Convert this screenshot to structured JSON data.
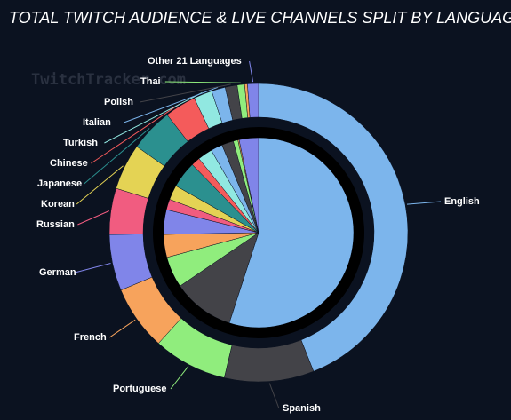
{
  "chart_data": {
    "type": "pie",
    "title": "TOTAL TWITCH AUDIENCE & LIVE CHANNELS SPLIT BY LANGUAGE",
    "watermark": "TwitchTracker.com",
    "categories": [
      "English",
      "Spanish",
      "Portuguese",
      "French",
      "German",
      "Russian",
      "Korean",
      "Japanese",
      "Chinese",
      "Turkish",
      "Italian",
      "Polish",
      "Thai",
      null,
      "Other 21 Languages"
    ],
    "colors": [
      "#7cb5ec",
      "#434348",
      "#90ed7d",
      "#f7a35c",
      "#8085e9",
      "#f15c80",
      "#e4d354",
      "#2b908f",
      "#f45b5b",
      "#91e8e1",
      "#7cb5ec",
      "#434348",
      "#90ed7d",
      "#f7a35c",
      "#8085e9"
    ],
    "series": [
      {
        "values": [
          55,
          10.5,
          5.3,
          3.9,
          4.2,
          1.8,
          2.5,
          4.5,
          1.5,
          2.5,
          2,
          2,
          0.8,
          0.2,
          3.3
        ]
      },
      {
        "values": [
          44,
          9.7,
          8,
          7,
          6.1,
          5,
          5,
          4.7,
          3.4,
          2,
          1.5,
          1.3,
          0.8,
          0.3,
          1.2
        ]
      }
    ]
  }
}
